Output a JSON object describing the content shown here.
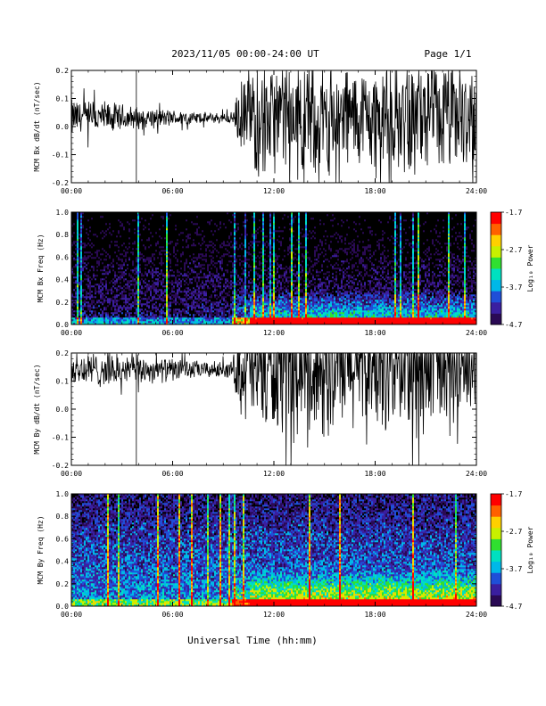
{
  "header": {
    "title": "2023/11/05  00:00-24:00 UT",
    "page": "Page 1/1"
  },
  "footer": {
    "xlabel": "Universal Time (hh:mm)"
  },
  "colors": {
    "waveform": "#000000",
    "spectrogram_palette": [
      "#000000",
      "#2a0a55",
      "#3a1fa0",
      "#1f4fd8",
      "#00b8e8",
      "#00e0c0",
      "#30e030",
      "#c8f000",
      "#ffd000",
      "#ff6000",
      "#ff0000",
      "#ffffff"
    ]
  },
  "chart_data": [
    {
      "type": "line",
      "panel": "bx-waveform",
      "ylabel": "MCM Bx dB/dt (nT/sec)",
      "xlim": [
        0,
        24
      ],
      "ylim": [
        -0.2,
        0.2
      ],
      "xticks": [
        "00:00",
        "06:00",
        "12:00",
        "18:00",
        "24:00"
      ],
      "yticks": [
        "-0.2",
        "-0.1",
        "0.0",
        "0.1",
        "0.2"
      ],
      "envelope_hours": [
        0,
        2,
        4,
        6,
        8,
        9.5,
        10,
        11,
        12,
        13,
        14,
        15,
        16,
        17,
        18,
        19,
        20,
        21,
        22,
        23,
        24
      ],
      "envelope_amplitude": [
        0.07,
        0.06,
        0.04,
        0.03,
        0.02,
        0.02,
        0.12,
        0.2,
        0.2,
        0.2,
        0.2,
        0.2,
        0.2,
        0.18,
        0.2,
        0.18,
        0.2,
        0.2,
        0.2,
        0.2,
        0.16
      ],
      "baseline": 0.03
    },
    {
      "type": "heatmap",
      "panel": "bx-spectrogram",
      "ylabel": "MCM Bx Freq (Hz)",
      "xlim": [
        0,
        24
      ],
      "ylim": [
        0,
        1.0
      ],
      "xticks": [
        "00:00",
        "06:00",
        "12:00",
        "18:00",
        "24:00"
      ],
      "yticks": [
        "0.0",
        "0.2",
        "0.4",
        "0.6",
        "0.8",
        "1.0"
      ],
      "colorbar": {
        "label": "Log₁₀ Power",
        "ticks": [
          "-1.7",
          "-2.7",
          "-3.7",
          "-4.7"
        ],
        "range": [
          -4.7,
          -1.7
        ]
      }
    },
    {
      "type": "line",
      "panel": "by-waveform",
      "ylabel": "MCM By dB/dt (nT/sec)",
      "xlim": [
        0,
        24
      ],
      "ylim": [
        -0.2,
        0.2
      ],
      "xticks": [
        "00:00",
        "06:00",
        "12:00",
        "18:00",
        "24:00"
      ],
      "yticks": [
        "-0.2",
        "-0.1",
        "0.0",
        "0.1",
        "0.2"
      ],
      "envelope_hours": [
        0,
        2,
        4,
        6,
        8,
        9.5,
        10,
        11,
        12,
        13,
        14,
        15,
        16,
        17,
        18,
        19,
        20,
        21,
        22,
        23,
        24
      ],
      "envelope_amplitude": [
        0.07,
        0.06,
        0.05,
        0.04,
        0.03,
        0.03,
        0.15,
        0.25,
        0.25,
        0.25,
        0.25,
        0.25,
        0.25,
        0.22,
        0.25,
        0.22,
        0.25,
        0.25,
        0.25,
        0.25,
        0.2
      ],
      "baseline": 0.14
    },
    {
      "type": "heatmap",
      "panel": "by-spectrogram",
      "ylabel": "MCM By Freq (Hz)",
      "xlim": [
        0,
        24
      ],
      "ylim": [
        0,
        1.0
      ],
      "xticks": [
        "00:00",
        "06:00",
        "12:00",
        "18:00",
        "24:00"
      ],
      "yticks": [
        "0.0",
        "0.2",
        "0.4",
        "0.6",
        "0.8",
        "1.0"
      ],
      "colorbar": {
        "label": "Log₁₀ Power",
        "ticks": [
          "-1.7",
          "-2.7",
          "-3.7",
          "-4.7"
        ],
        "range": [
          -4.7,
          -1.7
        ]
      }
    }
  ]
}
